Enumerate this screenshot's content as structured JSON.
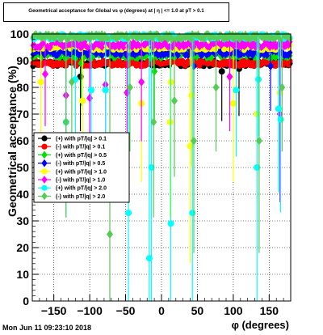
{
  "title": "Geometrical acceptance for Global vs φ (degrees) at | η | <= 1.0 at pT > 0.1",
  "footer": "Mon Jun 11 09:23:10 2018",
  "chart_data": {
    "type": "scatter",
    "title": "Geometrical acceptance for Global vs φ (degrees) at | η | <= 1.0 at pT > 0.1",
    "xlabel": "φ (degrees)",
    "ylabel": "Geometrical acceptance (%)",
    "xlim": [
      -180,
      180
    ],
    "ylim": [
      0,
      100
    ],
    "xticks": [
      -150,
      -100,
      -50,
      0,
      50,
      100,
      150
    ],
    "yticks": [
      0,
      10,
      20,
      30,
      40,
      50,
      60,
      70,
      80,
      90,
      100
    ],
    "grid": true,
    "legend_position": "left",
    "series": [
      {
        "name": "(+) with pT/|q| > 0.1",
        "color": "#000000",
        "marker": "circle",
        "base": 89,
        "outliers": [
          [
            -113,
            84
          ],
          [
            84,
            86
          ],
          [
            108,
            87
          ]
        ]
      },
      {
        "name": "(-) with pT/|q| > 0.1",
        "color": "#ff0000",
        "marker": "circle",
        "base": 89,
        "outliers": []
      },
      {
        "name": "(+) with pT/|q| > 0.5",
        "color": "#00dd00",
        "marker": "diamond",
        "base": 92,
        "outliers": [
          [
            -112,
            89
          ],
          [
            -10,
            86
          ]
        ]
      },
      {
        "name": "(-) with pT/|q| > 0.5",
        "color": "#0000ff",
        "marker": "diamond",
        "base": 93,
        "outliers": [
          [
            45,
            88
          ],
          [
            152,
            88
          ]
        ]
      },
      {
        "name": "(+) with pT/|q| > 1.0",
        "color": "#ffff00",
        "marker": "circle",
        "base": 95,
        "outliers": [
          [
            -168,
            82
          ],
          [
            -110,
            75
          ],
          [
            -28,
            74
          ],
          [
            13,
            82
          ],
          [
            12,
            67
          ],
          [
            42,
            77
          ],
          [
            40,
            58
          ],
          [
            100,
            74
          ],
          [
            133,
            70
          ],
          [
            165,
            78
          ]
        ]
      },
      {
        "name": "(-) with pT/|q| > 1.0",
        "color": "#ff00ff",
        "marker": "diamond",
        "base": 96,
        "outliers": [
          [
            -162,
            85
          ],
          [
            -133,
            77
          ],
          [
            -100,
            76
          ],
          [
            -78,
            81
          ],
          [
            -48,
            78
          ],
          [
            -28,
            82
          ],
          [
            95,
            84
          ],
          [
            165,
            70
          ]
        ]
      },
      {
        "name": "(+) with pT/|q| > 2.0",
        "color": "#00ffff",
        "marker": "circle",
        "base": 99,
        "outliers": [
          [
            -133,
            67
          ],
          [
            -120,
            83
          ],
          [
            -98,
            79
          ],
          [
            -78,
            79
          ],
          [
            -46,
            33
          ],
          [
            -17,
            16
          ],
          [
            -14,
            50
          ],
          [
            13,
            29
          ],
          [
            43,
            33
          ],
          [
            104,
            79
          ],
          [
            133,
            50
          ],
          [
            135,
            83
          ],
          [
            163,
            72
          ],
          [
            166,
            68
          ]
        ]
      },
      {
        "name": "(-) with pT/|q| > 2.0",
        "color": "#55cc55",
        "marker": "diamond",
        "base": 99,
        "outliers": [
          [
            -133,
            67
          ],
          [
            -125,
            82
          ],
          [
            -72,
            25
          ],
          [
            -44,
            80
          ],
          [
            -11,
            67
          ],
          [
            18,
            75
          ],
          [
            45,
            60
          ],
          [
            76,
            80
          ],
          [
            136,
            60
          ],
          [
            168,
            80
          ]
        ]
      }
    ]
  }
}
